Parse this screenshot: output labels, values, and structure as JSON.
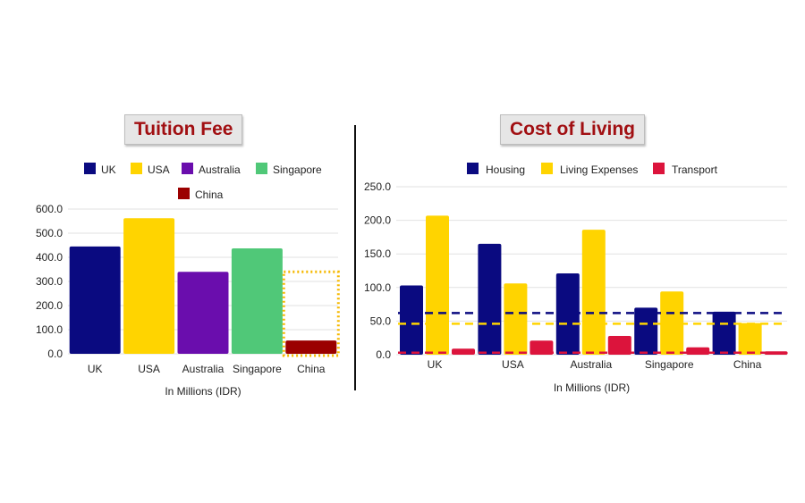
{
  "chart_data": [
    {
      "type": "bar",
      "title": "Tuition Fee",
      "xlabel": "In Millions (IDR)",
      "ylabel": "",
      "ylim": [
        0,
        600
      ],
      "yticks": [
        "0.0",
        "100.0",
        "200.0",
        "300.0",
        "400.0",
        "500.0",
        "600.0"
      ],
      "categories": [
        "UK",
        "USA",
        "Australia",
        "Singapore",
        "China"
      ],
      "values": [
        445,
        562,
        340,
        437,
        55
      ],
      "colors": [
        "#0a0a80",
        "#ffd400",
        "#6a0dad",
        "#50c878",
        "#9b0000"
      ],
      "legend": [
        "UK",
        "USA",
        "Australia",
        "Singapore",
        "China"
      ],
      "legend_position": "top",
      "highlight": "China",
      "grid": true
    },
    {
      "type": "bar",
      "title": "Cost of Living",
      "xlabel": "In Millions (IDR)",
      "ylabel": "",
      "ylim": [
        0,
        250
      ],
      "yticks": [
        "0.0",
        "50.0",
        "100.0",
        "150.0",
        "200.0",
        "250.0"
      ],
      "categories": [
        "UK",
        "USA",
        "Australia",
        "Singapore",
        "China"
      ],
      "series": [
        {
          "name": "Housing",
          "values": [
            103,
            165,
            121,
            70,
            64
          ],
          "color": "#0a0a80",
          "average": 62
        },
        {
          "name": "Living Expenses",
          "values": [
            207,
            106,
            186,
            94,
            47
          ],
          "color": "#ffd400",
          "average": 46
        },
        {
          "name": "Transport",
          "values": [
            9,
            21,
            28,
            11,
            5
          ],
          "color": "#dc143c",
          "average": 3
        }
      ],
      "legend_position": "top",
      "grid": true
    }
  ]
}
